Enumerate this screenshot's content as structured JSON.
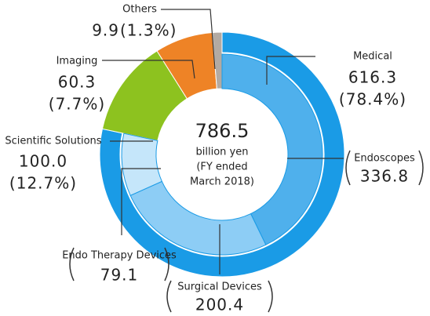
{
  "chart_data": {
    "type": "nested-donut",
    "center_value": 786.5,
    "center_lines": [
      "billion yen",
      "(FY ended",
      "March 2018)"
    ],
    "outer_ring": {
      "categories": [
        "Medical",
        "Scientific Solutions",
        "Imaging",
        "Others"
      ],
      "values": [
        616.3,
        100.0,
        60.3,
        9.9
      ],
      "value_labels": [
        "616.3",
        "100.0",
        "60.3",
        "9.9"
      ],
      "percent_labels": [
        "(78.4%)",
        "(12.7%)",
        "(7.7%)",
        "(1.3%)"
      ],
      "colors": [
        "#1a9be6",
        "#8dc21f",
        "#ee8326",
        "#b3aaa2"
      ]
    },
    "inner_ring": {
      "categories": [
        "Endoscopes",
        "Surgical Devices",
        "Endo Therapy Devices"
      ],
      "values": [
        336.8,
        200.4,
        79.1
      ],
      "colors": [
        "#4fb0ec",
        "#8dcdf5",
        "#c5e6fa"
      ]
    }
  }
}
